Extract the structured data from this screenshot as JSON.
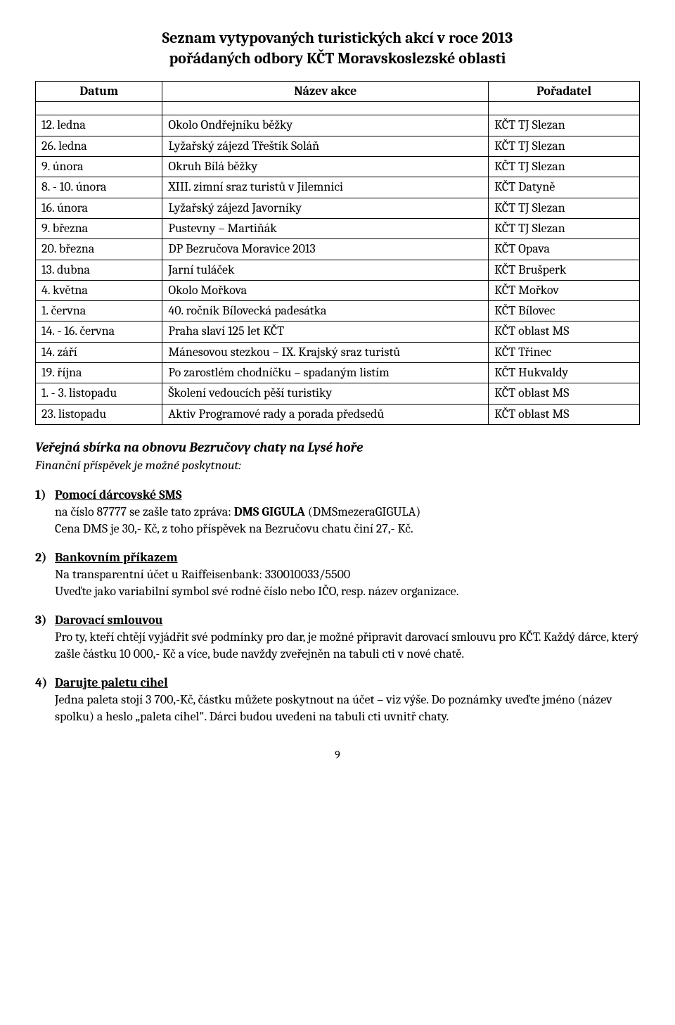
{
  "title_line1": "Seznam vytypovaných turistických akcí v roce 2013",
  "title_line2": "pořádaných odbory KČT Moravskoslezské oblasti",
  "table": {
    "headers": {
      "date": "Datum",
      "name": "Název akce",
      "org": "Pořadatel"
    },
    "rows": [
      {
        "date": "12. ledna",
        "name": "Okolo Ondřejníku běžky",
        "org": "KČT TJ Slezan"
      },
      {
        "date": "26. ledna",
        "name": "Lyžařský zájezd Třeštík Soláň",
        "org": "KČT TJ Slezan"
      },
      {
        "date": "9. února",
        "name": "Okruh Bílá běžky",
        "org": "KČT TJ Slezan"
      },
      {
        "date": "8. - 10. února",
        "name": "XIII. zimní sraz turistů v Jilemnici",
        "org": "KČT Datyně"
      },
      {
        "date": "16. února",
        "name": "Lyžařský zájezd Javorníky",
        "org": "KČT TJ Slezan"
      },
      {
        "date": "9. března",
        "name": "Pustevny – Martiňák",
        "org": "KČT TJ Slezan"
      },
      {
        "date": "20. března",
        "name": "DP Bezručova Moravice 2013",
        "org": "KČT Opava"
      },
      {
        "date": "13. dubna",
        "name": "Jarní tuláček",
        "org": "KČT Brušperk"
      },
      {
        "date": "4. května",
        "name": "Okolo Mořkova",
        "org": "KČT Mořkov"
      },
      {
        "date": "1. června",
        "name": "40. ročník Bílovecká padesátka",
        "org": "KČT Bílovec"
      },
      {
        "date": "14. - 16. června",
        "name": "Praha slaví 125 let KČT",
        "org": "KČT oblast MS"
      },
      {
        "date": "14. září",
        "name": "Mánesovou stezkou – IX. Krajský sraz turistů",
        "org": "KČT Třinec"
      },
      {
        "date": "19. října",
        "name": "Po zarostlém chodníčku – spadaným listím",
        "org": "KČT Hukvaldy"
      },
      {
        "date": "1. - 3. listopadu",
        "name": "Školení vedoucích pěší turistiky",
        "org": "KČT oblast MS"
      },
      {
        "date": "23. listopadu",
        "name": "Aktiv Programové rady a porada předsedů",
        "org": "KČT oblast MS"
      }
    ]
  },
  "sbirka_title": "Veřejná sbírka na obnovu Bezručovy chaty na Lysé hoře",
  "sbirka_sub": "Finanční příspěvek je možné poskytnout:",
  "items": [
    {
      "num": "1)",
      "heading": "Pomocí dárcovské SMS",
      "body": "na číslo 87777 se zašle tato zpráva:  <b>DMS GIGULA</b>  (DMSmezeraGIGULA)\nCena DMS je 30,- Kč, z toho příspěvek na Bezručovu chatu činí 27,- Kč."
    },
    {
      "num": "2)",
      "heading": "Bankovním příkazem",
      "body": "Na transparentní účet u Raiffeisenbank:  330010033/5500\nUveďte jako variabilní symbol své rodné číslo nebo IČO, resp. název organizace."
    },
    {
      "num": "3)",
      "heading": "Darovací smlouvou",
      "body": "Pro ty, kteří chtějí vyjádřit své podmínky pro dar, je možné připravit darovací smlouvu pro KČT. Každý dárce, který zašle částku 10 000,- Kč a více, bude navždy zveřejněn na tabuli cti v nové chatě."
    },
    {
      "num": "4)",
      "heading": "Darujte paletu cihel",
      "body": "Jedna paleta stojí 3 700,-Kč, částku můžete poskytnout na účet – viz výše. Do poznámky uveďte jméno (název spolku) a heslo „paleta cihel\". Dárci budou uvedeni na tabuli cti uvnitř chaty."
    }
  ],
  "page_number": "9"
}
